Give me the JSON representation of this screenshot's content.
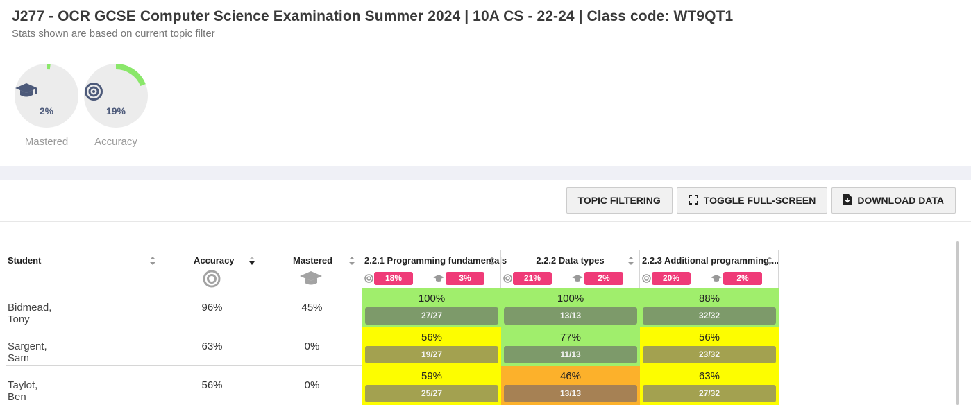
{
  "header": {
    "title": "J277 - OCR GCSE Computer Science Examination Summer 2024 | 10A CS - 22-24 | Class code: WT9QT1",
    "subtitle": "Stats shown are based on current topic filter"
  },
  "stats": [
    {
      "label": "Mastered",
      "value": "2%",
      "fraction": 0.02,
      "icon": "graduation-cap-icon"
    },
    {
      "label": "Accuracy",
      "value": "19%",
      "fraction": 0.19,
      "icon": "target-icon"
    }
  ],
  "toolbar": {
    "topic_filtering": "TOPIC FILTERING",
    "toggle_fullscreen": "TOGGLE FULL-SCREEN",
    "download_data": "DOWNLOAD DATA"
  },
  "table": {
    "columns": {
      "student": "Student",
      "accuracy": "Accuracy",
      "mastered": "Mastered"
    },
    "topics": [
      {
        "name": "2.2.1 Programming fundamentals",
        "accuracy": "18%",
        "mastered": "3%"
      },
      {
        "name": "2.2.2 Data types",
        "accuracy": "21%",
        "mastered": "2%"
      },
      {
        "name": "2.2.3 Additional programming ...",
        "accuracy": "20%",
        "mastered": "2%"
      }
    ],
    "rows": [
      {
        "student": "Bidmead, Tony",
        "accuracy": "96%",
        "mastered": "45%",
        "cells": [
          {
            "pct": "100%",
            "frac": "27/27",
            "level": "green"
          },
          {
            "pct": "100%",
            "frac": "13/13",
            "level": "green"
          },
          {
            "pct": "88%",
            "frac": "32/32",
            "level": "green"
          }
        ]
      },
      {
        "student": "Sargent, Sam",
        "accuracy": "63%",
        "mastered": "0%",
        "cells": [
          {
            "pct": "56%",
            "frac": "19/27",
            "level": "yellow"
          },
          {
            "pct": "77%",
            "frac": "11/13",
            "level": "green"
          },
          {
            "pct": "56%",
            "frac": "23/32",
            "level": "yellow"
          }
        ]
      },
      {
        "student": "Taylot, Ben",
        "accuracy": "56%",
        "mastered": "0%",
        "cells": [
          {
            "pct": "59%",
            "frac": "25/27",
            "level": "yellow"
          },
          {
            "pct": "46%",
            "frac": "13/13",
            "level": "orange"
          },
          {
            "pct": "63%",
            "frac": "27/32",
            "level": "yellow"
          }
        ]
      }
    ]
  },
  "colors": {
    "green": "#a0ee6c",
    "green_bar": "#7d9a6a",
    "yellow": "#fdfd00",
    "yellow_bar": "#a3a150",
    "orange": "#fcb12b",
    "orange_bar": "#a68154",
    "pill": "#ef3b78",
    "ring_track": "#ececec",
    "ring_fill": "#8ae76a"
  }
}
